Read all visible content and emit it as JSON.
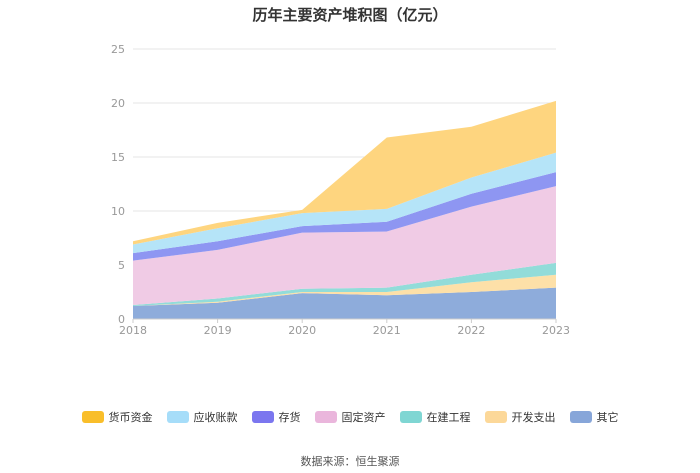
{
  "chart_data": {
    "type": "area",
    "stacked": true,
    "title": "历年主要资产堆积图（亿元）",
    "x": [
      "2018",
      "2019",
      "2020",
      "2021",
      "2022",
      "2023"
    ],
    "y_ticks": [
      "0",
      "5",
      "10",
      "15",
      "20",
      "25"
    ],
    "ylim": [
      0,
      25
    ],
    "grid": true,
    "legend_position": "bottom",
    "series": [
      {
        "name": "其它",
        "color": "#8eacdb",
        "values": [
          1.2,
          1.5,
          2.4,
          2.2,
          2.5,
          2.9
        ]
      },
      {
        "name": "开发支出",
        "color": "#fde0a8",
        "values": [
          0.0,
          0.1,
          0.1,
          0.3,
          0.9,
          1.2
        ]
      },
      {
        "name": "在建工程",
        "color": "#92dcd9",
        "values": [
          0.1,
          0.3,
          0.3,
          0.4,
          0.7,
          1.1
        ]
      },
      {
        "name": "固定资产",
        "color": "#f0cbe5",
        "values": [
          4.1,
          4.5,
          5.2,
          5.2,
          6.3,
          7.1
        ]
      },
      {
        "name": "存货",
        "color": "#8e96f2",
        "values": [
          0.7,
          0.8,
          0.6,
          0.9,
          1.2,
          1.3
        ]
      },
      {
        "name": "应收账款",
        "color": "#b5e4f8",
        "values": [
          0.8,
          1.2,
          1.2,
          1.2,
          1.5,
          1.8
        ]
      },
      {
        "name": "货币资金",
        "color": "#fed57f",
        "values": [
          0.3,
          0.5,
          0.3,
          6.6,
          4.7,
          4.8
        ]
      }
    ],
    "legend": [
      {
        "name": "货币资金",
        "color": "#f9be2a"
      },
      {
        "name": "应收账款",
        "color": "#a6ddf9"
      },
      {
        "name": "存货",
        "color": "#7b76ef"
      },
      {
        "name": "固定资产",
        "color": "#eab6dc"
      },
      {
        "name": "在建工程",
        "color": "#7fd6d3"
      },
      {
        "name": "开发支出",
        "color": "#fcd899"
      },
      {
        "name": "其它",
        "color": "#87a6d9"
      }
    ]
  },
  "source": "数据来源：恒生聚源"
}
